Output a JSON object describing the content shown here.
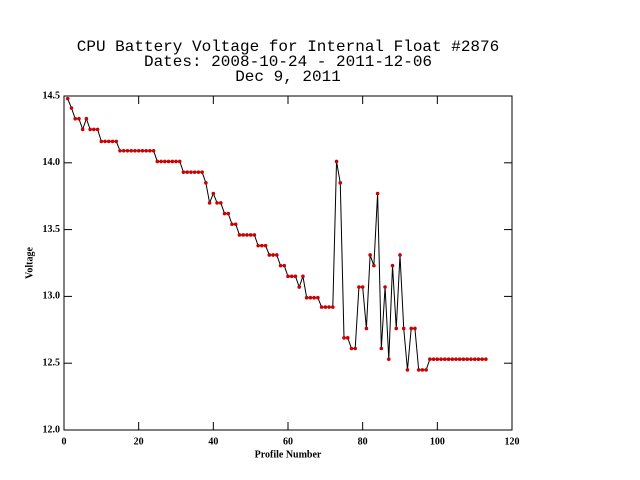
{
  "chart_data": {
    "type": "line",
    "title": [
      "CPU Battery Voltage for Internal Float #2876",
      "Dates:  2008-10-24 -  2011-12-06",
      "Dec  9, 2011"
    ],
    "xlabel": "Profile Number",
    "ylabel": "Voltage",
    "x": [
      1,
      2,
      3,
      4,
      5,
      6,
      7,
      8,
      9,
      10,
      11,
      12,
      13,
      14,
      15,
      16,
      17,
      18,
      19,
      20,
      21,
      22,
      23,
      24,
      25,
      26,
      27,
      28,
      29,
      30,
      31,
      32,
      33,
      34,
      35,
      36,
      37,
      38,
      39,
      40,
      41,
      42,
      43,
      44,
      45,
      46,
      47,
      48,
      49,
      50,
      51,
      52,
      53,
      54,
      55,
      56,
      57,
      58,
      59,
      60,
      61,
      62,
      63,
      64,
      65,
      66,
      67,
      68,
      69,
      70,
      71,
      72,
      73,
      74,
      75,
      76,
      77,
      78,
      79,
      80,
      81,
      82,
      83,
      84,
      85,
      86,
      87,
      88,
      89,
      90,
      91,
      92,
      93,
      94,
      95,
      96,
      97,
      98,
      99,
      100,
      101,
      102,
      103,
      104,
      105,
      106,
      107,
      108,
      109,
      110,
      111,
      112,
      113
    ],
    "values": [
      14.48,
      14.41,
      14.33,
      14.33,
      14.25,
      14.33,
      14.25,
      14.25,
      14.25,
      14.16,
      14.16,
      14.16,
      14.16,
      14.16,
      14.09,
      14.09,
      14.09,
      14.09,
      14.09,
      14.09,
      14.09,
      14.09,
      14.09,
      14.09,
      14.01,
      14.01,
      14.01,
      14.01,
      14.01,
      14.01,
      14.01,
      13.93,
      13.93,
      13.93,
      13.93,
      13.93,
      13.93,
      13.85,
      13.7,
      13.77,
      13.7,
      13.7,
      13.62,
      13.62,
      13.54,
      13.54,
      13.46,
      13.46,
      13.46,
      13.46,
      13.46,
      13.38,
      13.38,
      13.38,
      13.31,
      13.31,
      13.31,
      13.23,
      13.23,
      13.15,
      13.15,
      13.15,
      13.07,
      13.15,
      12.99,
      12.99,
      12.99,
      12.99,
      12.92,
      12.92,
      12.92,
      12.92,
      14.01,
      13.85,
      12.69,
      12.69,
      12.61,
      12.61,
      13.07,
      13.07,
      12.76,
      13.31,
      13.23,
      13.77,
      12.61,
      13.07,
      12.53,
      13.23,
      12.76,
      13.31,
      12.76,
      12.45,
      12.76,
      12.76,
      12.45,
      12.45,
      12.45,
      12.53,
      12.53,
      12.53,
      12.53,
      12.53,
      12.53,
      12.53,
      12.53,
      12.53,
      12.53,
      12.53,
      12.53,
      12.53,
      12.53,
      12.53,
      12.53
    ],
    "color": "#000000",
    "marker_color": "#cc0000",
    "xlim": [
      0,
      120
    ],
    "xticks": [
      0,
      20,
      40,
      60,
      80,
      100,
      120
    ],
    "ylim": [
      12,
      14.5
    ],
    "yticks": [
      {
        "value": 12,
        "label": "12.0"
      },
      12.5,
      {
        "value": 13,
        "label": "13.0"
      },
      13.5,
      {
        "value": 14,
        "label": "14.0"
      },
      14.5
    ],
    "grid": false
  }
}
